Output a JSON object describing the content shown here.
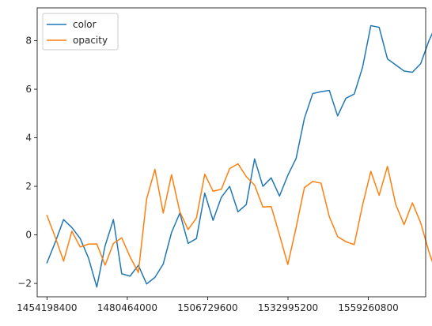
{
  "chart_data": {
    "type": "line",
    "title": "",
    "xlabel": "",
    "ylabel": "",
    "xlim": [
      1451000000,
      1578000000
    ],
    "ylim": [
      -2.55,
      9.35
    ],
    "x_ticks": [
      1454198400,
      1480464000,
      1506729600,
      1532995200,
      1559260800
    ],
    "x_tick_labels": [
      "1454198400",
      "1480464000",
      "1506729600",
      "1532995200",
      "1559260800"
    ],
    "y_ticks": [
      -2,
      0,
      2,
      4,
      6,
      8
    ],
    "y_tick_labels": [
      "−2",
      "0",
      "2",
      "4",
      "6",
      "8"
    ],
    "grid": false,
    "legend_position": "top-left",
    "series": [
      {
        "name": "color",
        "color": "#1f77b4",
        "values": [
          -1.15,
          -0.3,
          0.63,
          0.3,
          -0.15,
          -0.95,
          -2.15,
          -0.45,
          0.63,
          -1.6,
          -1.7,
          -1.25,
          -2.02,
          -1.75,
          -1.2,
          0.1,
          0.9,
          -0.35,
          -0.15,
          1.72,
          0.6,
          1.55,
          2.0,
          0.95,
          1.25,
          3.13,
          2.0,
          2.35,
          1.6,
          2.45,
          3.15,
          4.8,
          5.82,
          5.9,
          5.95,
          4.9,
          5.63,
          5.8,
          6.9,
          8.62,
          8.55,
          7.25,
          7.0,
          6.75,
          6.7,
          7.05,
          8.0,
          8.75
        ]
      },
      {
        "name": "opacity",
        "color": "#ff7f0e",
        "values": [
          0.8,
          -0.1,
          -1.08,
          0.15,
          -0.5,
          -0.38,
          -0.37,
          -1.25,
          -0.35,
          -0.12,
          -0.9,
          -1.55,
          1.48,
          2.7,
          0.9,
          2.48,
          0.95,
          0.22,
          0.7,
          2.5,
          1.8,
          1.88,
          2.73,
          2.93,
          2.4,
          2.05,
          1.15,
          1.17,
          0.0,
          -1.22,
          0.3,
          1.95,
          2.2,
          2.13,
          0.75,
          -0.07,
          -0.28,
          -0.4,
          1.22,
          2.62,
          1.63,
          2.82,
          1.25,
          0.42,
          1.32,
          0.5,
          -0.7,
          -1.7
        ]
      }
    ]
  }
}
